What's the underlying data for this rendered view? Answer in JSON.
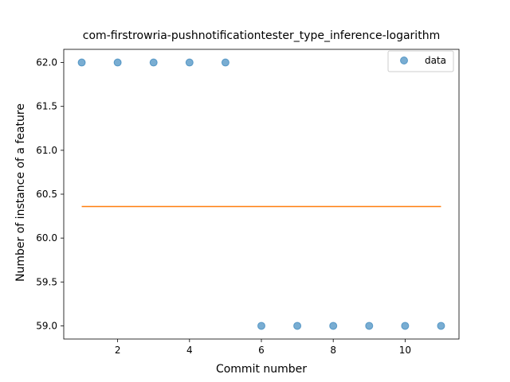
{
  "chart_data": {
    "type": "scatter",
    "title": "com-firstrowria-pushnotificationtester_type_inference-logarithm",
    "xlabel": "Commit number",
    "ylabel": "Number of instance of a feature",
    "xlim": [
      0.5,
      11.5
    ],
    "ylim": [
      58.85,
      62.15
    ],
    "xticks": [
      "2",
      "4",
      "6",
      "8",
      "10"
    ],
    "xtick_values": [
      2,
      4,
      6,
      8,
      10
    ],
    "yticks": [
      "59.0",
      "59.5",
      "60.0",
      "60.5",
      "61.0",
      "61.5",
      "62.0"
    ],
    "ytick_values": [
      59.0,
      59.5,
      60.0,
      60.5,
      61.0,
      61.5,
      62.0
    ],
    "series": [
      {
        "name": "data",
        "kind": "scatter",
        "color": "#1f77b4",
        "x": [
          1,
          2,
          3,
          4,
          5,
          6,
          7,
          8,
          9,
          10,
          11
        ],
        "y": [
          62,
          62,
          62,
          62,
          62,
          59,
          59,
          59,
          59,
          59,
          59
        ]
      },
      {
        "kind": "line",
        "color": "#ff7f0e",
        "x": [
          1,
          11
        ],
        "y": [
          60.36,
          60.36
        ]
      }
    ],
    "legend": {
      "position": "top-right",
      "entries": [
        "data"
      ]
    },
    "grid": false
  }
}
